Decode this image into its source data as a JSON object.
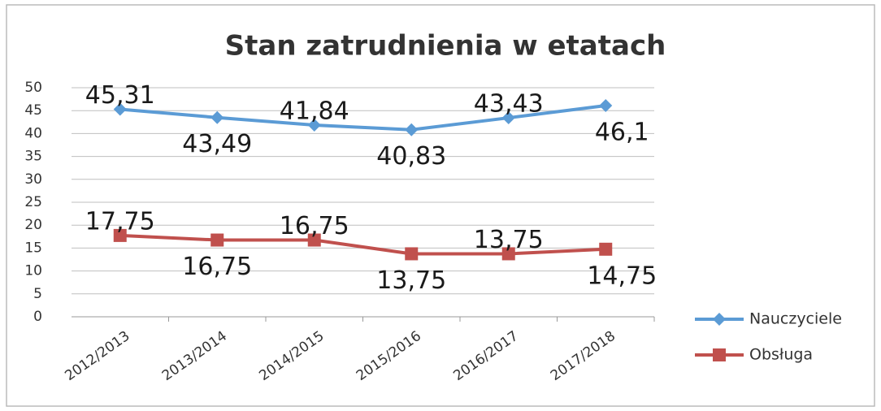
{
  "chart_data": {
    "type": "line",
    "title": "Stan zatrudnienia w etatach",
    "categories": [
      "2012/2013",
      "2013/2014",
      "2014/2015",
      "2015/2016",
      "2016/2017",
      "2017/2018"
    ],
    "series": [
      {
        "name": "Nauczyciele",
        "color": "#5b9bd5",
        "marker": "diamond",
        "values": [
          45.31,
          43.49,
          41.84,
          40.83,
          43.43,
          46.1
        ],
        "value_labels": [
          "45,31",
          "43,49",
          "41,84",
          "40,83",
          "43,43",
          "46,1"
        ]
      },
      {
        "name": "Obsługa",
        "color": "#c0504d",
        "marker": "square",
        "values": [
          17.75,
          16.75,
          16.75,
          13.75,
          13.75,
          14.75
        ],
        "value_labels": [
          "17,75",
          "16,75",
          "16,75",
          "13,75",
          "13,75",
          "14,75"
        ]
      }
    ],
    "ylim": [
      0,
      50
    ],
    "yticks": [
      0,
      5,
      10,
      15,
      20,
      25,
      30,
      35,
      40,
      45,
      50
    ],
    "grid": true,
    "legend": "right"
  }
}
